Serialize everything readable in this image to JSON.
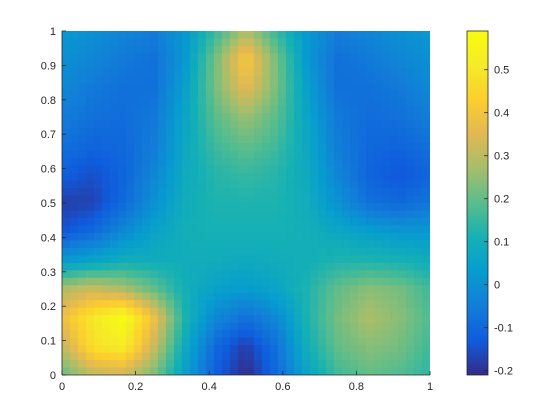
{
  "chart_data": {
    "type": "heatmap",
    "title": "",
    "xlabel": "",
    "ylabel": "",
    "xlim": [
      0,
      1
    ],
    "ylim": [
      0,
      1
    ],
    "x_ticks": [
      "0",
      "0.2",
      "0.4",
      "0.6",
      "0.8",
      "1"
    ],
    "y_ticks": [
      "0",
      "0.1",
      "0.2",
      "0.3",
      "0.4",
      "0.5",
      "0.6",
      "0.7",
      "0.8",
      "0.9",
      "1"
    ],
    "colorbar": {
      "position": "right",
      "range": [
        -0.21,
        0.59
      ],
      "ticks": [
        "-0.2",
        "-0.1",
        "0",
        "0.1",
        "0.2",
        "0.3",
        "0.4",
        "0.5"
      ],
      "colormap": "parula"
    },
    "grid_x": [
      0.0,
      0.0833,
      0.1667,
      0.25,
      0.3333,
      0.4167,
      0.5,
      0.5833,
      0.6667,
      0.75,
      0.8333,
      0.9167,
      1.0
    ],
    "grid_y": [
      1.0,
      0.9167,
      0.8333,
      0.75,
      0.6667,
      0.5833,
      0.5,
      0.4167,
      0.3333,
      0.25,
      0.1667,
      0.0833,
      0.0
    ],
    "z": [
      [
        0.02,
        0.0,
        -0.03,
        -0.05,
        0.02,
        0.15,
        0.28,
        0.15,
        0.02,
        -0.05,
        -0.03,
        0.0,
        0.02
      ],
      [
        0.0,
        -0.03,
        -0.06,
        -0.08,
        0.02,
        0.22,
        0.42,
        0.22,
        0.02,
        -0.08,
        -0.06,
        -0.03,
        0.0
      ],
      [
        -0.02,
        -0.06,
        -0.08,
        -0.08,
        0.04,
        0.22,
        0.36,
        0.22,
        0.04,
        -0.08,
        -0.08,
        -0.06,
        -0.02
      ],
      [
        -0.05,
        -0.08,
        -0.09,
        -0.06,
        0.06,
        0.19,
        0.26,
        0.19,
        0.06,
        -0.06,
        -0.09,
        -0.08,
        -0.05
      ],
      [
        -0.08,
        -0.11,
        -0.1,
        -0.05,
        0.07,
        0.16,
        0.2,
        0.16,
        0.07,
        -0.05,
        -0.1,
        -0.11,
        -0.08
      ],
      [
        -0.12,
        -0.15,
        -0.11,
        -0.03,
        0.08,
        0.13,
        0.15,
        0.13,
        0.08,
        -0.03,
        -0.11,
        -0.14,
        -0.11
      ],
      [
        -0.18,
        -0.17,
        -0.1,
        0.0,
        0.09,
        0.12,
        0.12,
        0.12,
        0.09,
        0.0,
        -0.08,
        -0.1,
        -0.07
      ],
      [
        -0.14,
        -0.1,
        -0.02,
        0.05,
        0.1,
        0.11,
        0.11,
        0.11,
        0.1,
        0.07,
        0.04,
        0.02,
        0.02
      ],
      [
        0.02,
        0.05,
        0.09,
        0.09,
        0.09,
        0.09,
        0.08,
        0.09,
        0.1,
        0.12,
        0.12,
        0.11,
        0.09
      ],
      [
        0.28,
        0.32,
        0.28,
        0.2,
        0.1,
        0.05,
        0.03,
        0.06,
        0.12,
        0.2,
        0.24,
        0.22,
        0.16
      ],
      [
        0.38,
        0.5,
        0.58,
        0.38,
        0.12,
        -0.02,
        -0.08,
        -0.02,
        0.12,
        0.22,
        0.28,
        0.24,
        0.18
      ],
      [
        0.3,
        0.48,
        0.52,
        0.32,
        0.08,
        -0.1,
        -0.18,
        -0.08,
        0.1,
        0.2,
        0.24,
        0.22,
        0.16
      ],
      [
        0.2,
        0.3,
        0.32,
        0.22,
        0.05,
        -0.12,
        -0.21,
        -0.1,
        0.06,
        0.16,
        0.2,
        0.18,
        0.14
      ]
    ]
  }
}
